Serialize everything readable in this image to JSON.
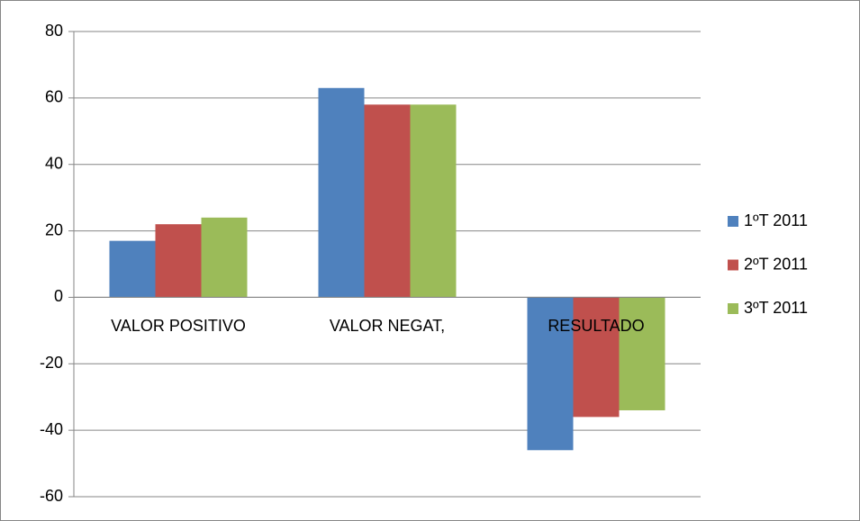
{
  "chart_data": {
    "type": "bar",
    "categories": [
      "VALOR POSITIVO",
      "VALOR NEGAT,",
      "RESULTADO"
    ],
    "series": [
      {
        "name": "1ºT 2011",
        "color": "#4f81bd",
        "values": [
          17,
          63,
          -46
        ]
      },
      {
        "name": "2ºT 2011",
        "color": "#c0504d",
        "values": [
          22,
          58,
          -36
        ]
      },
      {
        "name": "3ºT 2011",
        "color": "#9bbb59",
        "values": [
          24,
          58,
          -34
        ]
      }
    ],
    "ylim": [
      -60,
      80
    ],
    "yticks": [
      -60,
      -40,
      -20,
      0,
      20,
      40,
      60,
      80
    ],
    "grid": true,
    "legend": "right"
  }
}
